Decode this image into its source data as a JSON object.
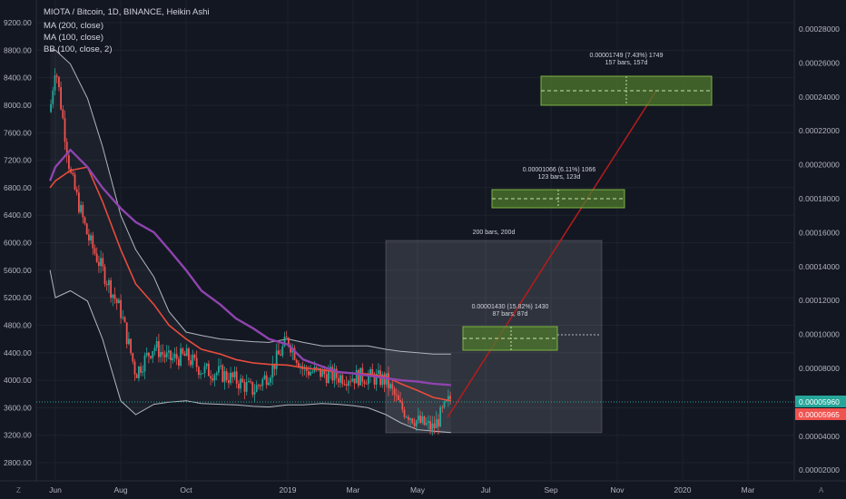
{
  "header": {
    "symbol_line": "MIOTA / Bitcoin, 1D, BINANCE, Heikin Ashi",
    "indicators": [
      "MA (200, close)",
      "MA (100, close)",
      "BB (100, close, 2)"
    ]
  },
  "left_axis": {
    "ticks": [
      "9200.00",
      "8800.00",
      "8400.00",
      "8000.00",
      "7600.00",
      "7200.00",
      "6800.00",
      "6400.00",
      "6000.00",
      "5600.00",
      "5200.00",
      "4800.00",
      "4400.00",
      "4000.00",
      "3600.00",
      "3200.00",
      "2800.00"
    ]
  },
  "right_axis": {
    "ticks": [
      "0.00028000",
      "0.00026000",
      "0.00024000",
      "0.00022000",
      "0.00020000",
      "0.00018000",
      "0.00016000",
      "0.00014000",
      "0.00012000",
      "0.00010000",
      "0.00008000",
      "0.00004000",
      "0.00002000"
    ],
    "badge_green": "0.00005960",
    "badge_red": "0.00005965"
  },
  "time_axis": {
    "labels": [
      "Jun",
      "Aug",
      "Oct",
      "2019",
      "Mar",
      "May",
      "Jul",
      "Sep",
      "Nov",
      "2020",
      "Mar"
    ],
    "left_corner": "Z",
    "right_corner": "A"
  },
  "annotations": {
    "range_box_label": "200 bars, 200d",
    "target1_line1": "0.00001430 (15.82%) 1430",
    "target1_line2": "87 bars, 87d",
    "target2_line1": "0.00001066 (6.11%) 1066",
    "target2_line2": "123 bars, 123d",
    "target3_line1": "0.00001749 (7.43%) 1749",
    "target3_line2": "157 bars, 157d"
  },
  "colors": {
    "background": "#131722",
    "candle_up": "#26a69a",
    "candle_down": "#ef5350",
    "ma200": "#8e44ad",
    "ma100": "#e74c3c",
    "bollinger": "#b2b5be",
    "target_box": "#4f7a2c",
    "projection": "#b71c1c",
    "current_price_line": "#26a69a"
  },
  "chart_data": {
    "type": "line",
    "title": "MIOTA / Bitcoin, 1D, BINANCE, Heikin Ashi",
    "xlabel": "",
    "ylabel": "",
    "ylim": [
      2800,
      9200
    ],
    "x": [
      "2018-05-27",
      "2018-06-01",
      "2018-06-15",
      "2018-07-01",
      "2018-07-15",
      "2018-08-01",
      "2018-08-15",
      "2018-09-01",
      "2018-09-15",
      "2018-10-01",
      "2018-10-15",
      "2018-11-01",
      "2018-11-15",
      "2018-12-01",
      "2018-12-15",
      "2019-01-01",
      "2019-01-15",
      "2019-02-01",
      "2019-02-15",
      "2019-03-01",
      "2019-03-15",
      "2019-04-01",
      "2019-04-15",
      "2019-05-01",
      "2019-05-15",
      "2019-05-31"
    ],
    "series": [
      {
        "name": "MIOTA / Bitcoin",
        "values": [
          7900,
          8600,
          7000,
          6100,
          5600,
          5000,
          4100,
          4500,
          4300,
          4350,
          4150,
          4100,
          4000,
          3850,
          4100,
          4600,
          4150,
          4100,
          4050,
          4050,
          4050,
          4000,
          3600,
          3400,
          3300,
          3750
        ]
      },
      {
        "name": "MA (200, close)",
        "values": [
          6900,
          7100,
          7350,
          7100,
          6800,
          6500,
          6300,
          6150,
          5900,
          5600,
          5300,
          5100,
          4900,
          4750,
          4600,
          4520,
          4300,
          4200,
          4120,
          4100,
          4070,
          4030,
          4000,
          3980,
          3950,
          3930
        ]
      },
      {
        "name": "MA (100, close)",
        "values": [
          6800,
          6900,
          7050,
          7100,
          6600,
          5900,
          5400,
          5100,
          4800,
          4600,
          4450,
          4380,
          4300,
          4250,
          4230,
          4220,
          4180,
          4150,
          4120,
          4100,
          4090,
          4050,
          3950,
          3850,
          3750,
          3700
        ]
      }
    ],
    "bollinger_upper": [
      8800,
      8800,
      8600,
      8100,
      7400,
      6400,
      5900,
      5500,
      5000,
      4700,
      4650,
      4600,
      4580,
      4560,
      4550,
      4600,
      4550,
      4500,
      4500,
      4500,
      4500,
      4450,
      4420,
      4400,
      4380,
      4380
    ],
    "bollinger_lower": [
      5600,
      5200,
      5300,
      5150,
      4600,
      3700,
      3500,
      3650,
      3680,
      3700,
      3660,
      3650,
      3640,
      3620,
      3610,
      3640,
      3640,
      3660,
      3650,
      3630,
      3600,
      3500,
      3380,
      3280,
      3260,
      3240
    ],
    "current_price": 5.96e-05,
    "projected_targets": [
      1.43e-05,
      1.066e-05,
      1.749e-05
    ],
    "grid": true,
    "legend": "top-left"
  }
}
